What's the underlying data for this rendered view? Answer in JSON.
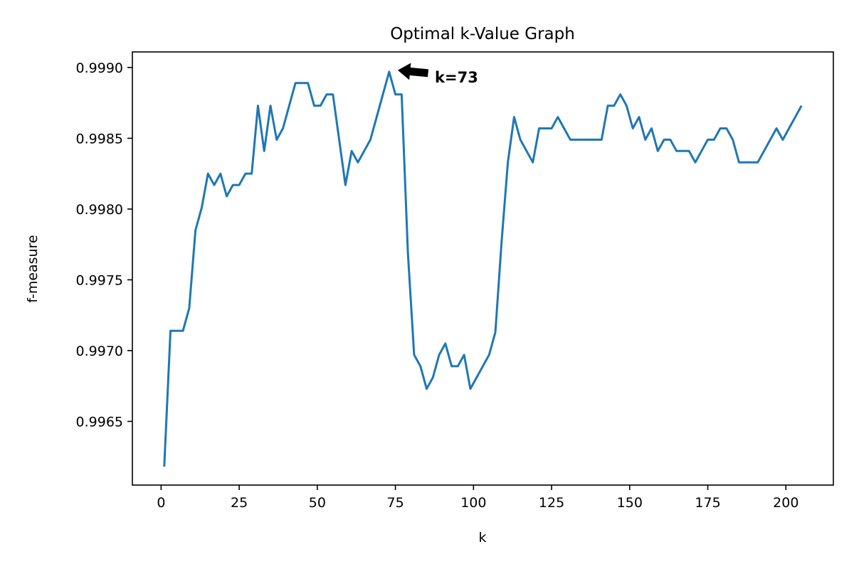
{
  "chart_data": {
    "type": "line",
    "title": "Optimal k-Value Graph",
    "xlabel": "k",
    "ylabel": "f-measure",
    "xlim": [
      -9.2,
      215.2
    ],
    "ylim": [
      0.99605,
      0.99911
    ],
    "xticks": [
      0,
      25,
      50,
      75,
      100,
      125,
      150,
      175,
      200
    ],
    "yticks": [
      0.9965,
      0.997,
      0.9975,
      0.998,
      0.9985,
      0.999
    ],
    "xtick_labels": [
      "0",
      "25",
      "50",
      "75",
      "100",
      "125",
      "150",
      "175",
      "200"
    ],
    "ytick_labels": [
      "0.9965",
      "0.9970",
      "0.9975",
      "0.9980",
      "0.9985",
      "0.9990"
    ],
    "grid": false,
    "line_color": "#1f77b4",
    "series": [
      {
        "x": [
          1,
          3,
          5,
          7,
          9,
          11,
          13,
          15,
          17,
          19,
          21,
          23,
          25,
          27,
          29,
          31,
          33,
          35,
          37,
          39,
          41,
          43,
          45,
          47,
          49,
          51,
          53,
          55,
          57,
          59,
          61,
          63,
          65,
          67,
          69,
          71,
          73,
          75,
          77,
          79,
          81,
          83,
          85,
          87,
          89,
          91,
          93,
          95,
          97,
          99,
          101,
          103,
          105,
          107,
          109,
          111,
          113,
          115,
          117,
          119,
          121,
          123,
          125,
          127,
          129,
          131,
          133,
          135,
          137,
          139,
          141,
          143,
          145,
          147,
          149,
          151,
          153,
          155,
          157,
          159,
          161,
          163,
          165,
          167,
          169,
          171,
          173,
          175,
          177,
          179,
          181,
          183,
          185,
          187,
          189,
          191,
          193,
          195,
          197,
          199,
          201,
          203,
          205
        ],
        "values": [
          0.99618,
          0.99714,
          0.99714,
          0.99714,
          0.9973,
          0.99785,
          0.99801,
          0.99825,
          0.99817,
          0.99825,
          0.99809,
          0.99817,
          0.99817,
          0.99825,
          0.99825,
          0.99873,
          0.99841,
          0.99873,
          0.99849,
          0.99857,
          0.99873,
          0.99889,
          0.99889,
          0.99889,
          0.99873,
          0.99873,
          0.99881,
          0.99881,
          0.99849,
          0.99817,
          0.99841,
          0.99833,
          0.99841,
          0.99849,
          0.99865,
          0.99881,
          0.99897,
          0.99881,
          0.99881,
          0.99769,
          0.99697,
          0.99689,
          0.99673,
          0.99681,
          0.99697,
          0.99705,
          0.99689,
          0.99689,
          0.99697,
          0.99673,
          0.99681,
          0.99689,
          0.99697,
          0.99713,
          0.99777,
          0.99833,
          0.99865,
          0.99849,
          0.99841,
          0.99833,
          0.99857,
          0.99857,
          0.99857,
          0.99865,
          0.99857,
          0.99849,
          0.99849,
          0.99849,
          0.99849,
          0.99849,
          0.99849,
          0.99873,
          0.99873,
          0.99881,
          0.99873,
          0.99857,
          0.99865,
          0.99849,
          0.99857,
          0.99841,
          0.99849,
          0.99849,
          0.99841,
          0.99841,
          0.99841,
          0.99833,
          0.99841,
          0.99849,
          0.99849,
          0.99857,
          0.99857,
          0.99849,
          0.99833,
          0.99833,
          0.99833,
          0.99833,
          0.99841,
          0.99849,
          0.99857,
          0.99849,
          0.99857,
          0.99865,
          0.99873
        ]
      }
    ],
    "annotation": {
      "text": "k=73",
      "x": 73,
      "y": 0.99897,
      "text_x": 89,
      "text_y": 0.99894
    }
  }
}
